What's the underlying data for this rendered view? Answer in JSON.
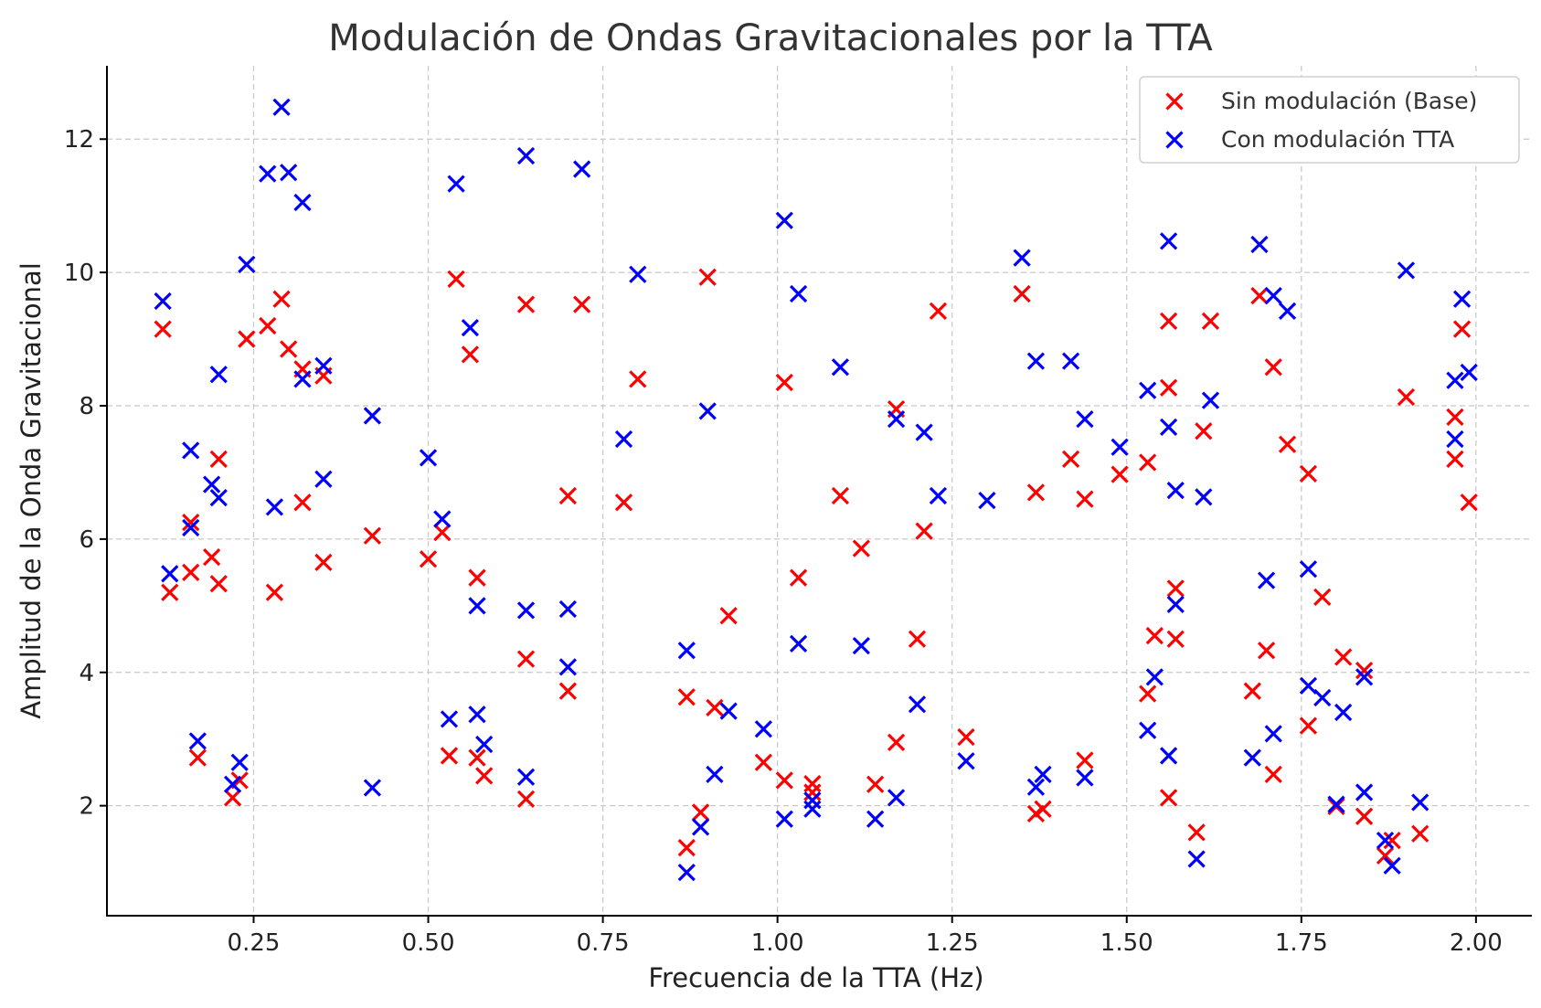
{
  "chart_data": {
    "type": "scatter",
    "title": "Modulación de Ondas Gravitacionales por la TTA",
    "xlabel": "Frecuencia de la TTA (Hz)",
    "ylabel": "Amplitud de la Onda Gravitacional",
    "xlim": [
      0.04,
      2.08
    ],
    "ylim": [
      0.35,
      13.1
    ],
    "xticks": [
      0.25,
      0.5,
      0.75,
      1.0,
      1.25,
      1.5,
      1.75,
      2.0
    ],
    "xtick_labels": [
      "0.25",
      "0.50",
      "0.75",
      "1.00",
      "1.25",
      "1.50",
      "1.75",
      "2.00"
    ],
    "yticks": [
      2,
      4,
      6,
      8,
      10,
      12
    ],
    "ytick_labels": [
      "2",
      "4",
      "6",
      "8",
      "10",
      "12"
    ],
    "grid": true,
    "legend_position": "top-right",
    "marker": "x",
    "series": [
      {
        "name": "Sin modulación (Base)",
        "color": "#ff0000",
        "points": [
          [
            0.12,
            9.15
          ],
          [
            0.13,
            5.2
          ],
          [
            0.16,
            5.5
          ],
          [
            0.16,
            6.25
          ],
          [
            0.17,
            2.72
          ],
          [
            0.19,
            5.73
          ],
          [
            0.2,
            5.33
          ],
          [
            0.2,
            7.2
          ],
          [
            0.22,
            2.12
          ],
          [
            0.23,
            2.38
          ],
          [
            0.24,
            9.0
          ],
          [
            0.27,
            9.2
          ],
          [
            0.28,
            5.2
          ],
          [
            0.29,
            9.6
          ],
          [
            0.3,
            8.85
          ],
          [
            0.32,
            8.55
          ],
          [
            0.32,
            6.55
          ],
          [
            0.35,
            5.65
          ],
          [
            0.35,
            8.45
          ],
          [
            0.42,
            6.05
          ],
          [
            0.5,
            5.7
          ],
          [
            0.52,
            6.1
          ],
          [
            0.53,
            2.75
          ],
          [
            0.54,
            9.9
          ],
          [
            0.56,
            8.77
          ],
          [
            0.57,
            2.72
          ],
          [
            0.57,
            5.42
          ],
          [
            0.58,
            2.45
          ],
          [
            0.64,
            9.52
          ],
          [
            0.64,
            2.1
          ],
          [
            0.64,
            4.2
          ],
          [
            0.7,
            6.65
          ],
          [
            0.7,
            3.72
          ],
          [
            0.72,
            9.52
          ],
          [
            0.78,
            6.55
          ],
          [
            0.8,
            8.4
          ],
          [
            0.87,
            3.63
          ],
          [
            0.87,
            1.37
          ],
          [
            0.89,
            1.9
          ],
          [
            0.9,
            9.93
          ],
          [
            0.91,
            3.47
          ],
          [
            0.93,
            4.85
          ],
          [
            0.98,
            2.65
          ],
          [
            1.01,
            8.35
          ],
          [
            1.01,
            2.38
          ],
          [
            1.03,
            5.42
          ],
          [
            1.05,
            2.33
          ],
          [
            1.05,
            2.2
          ],
          [
            1.09,
            6.65
          ],
          [
            1.12,
            5.86
          ],
          [
            1.14,
            2.32
          ],
          [
            1.17,
            7.95
          ],
          [
            1.17,
            2.95
          ],
          [
            1.2,
            4.5
          ],
          [
            1.21,
            6.12
          ],
          [
            1.23,
            9.42
          ],
          [
            1.27,
            3.03
          ],
          [
            1.35,
            9.68
          ],
          [
            1.37,
            6.7
          ],
          [
            1.37,
            1.88
          ],
          [
            1.38,
            1.95
          ],
          [
            1.42,
            7.2
          ],
          [
            1.44,
            2.68
          ],
          [
            1.44,
            6.6
          ],
          [
            1.49,
            6.97
          ],
          [
            1.53,
            7.15
          ],
          [
            1.53,
            3.68
          ],
          [
            1.54,
            4.55
          ],
          [
            1.56,
            9.27
          ],
          [
            1.56,
            8.27
          ],
          [
            1.56,
            2.12
          ],
          [
            1.57,
            5.26
          ],
          [
            1.57,
            4.5
          ],
          [
            1.6,
            1.6
          ],
          [
            1.61,
            7.62
          ],
          [
            1.62,
            9.27
          ],
          [
            1.68,
            3.72
          ],
          [
            1.69,
            9.65
          ],
          [
            1.7,
            4.33
          ],
          [
            1.71,
            2.47
          ],
          [
            1.71,
            8.58
          ],
          [
            1.73,
            7.42
          ],
          [
            1.76,
            3.2
          ],
          [
            1.76,
            6.98
          ],
          [
            1.78,
            5.13
          ],
          [
            1.8,
            1.99
          ],
          [
            1.81,
            4.23
          ],
          [
            1.84,
            1.84
          ],
          [
            1.84,
            4.03
          ],
          [
            1.87,
            1.25
          ],
          [
            1.88,
            1.48
          ],
          [
            1.9,
            8.13
          ],
          [
            1.92,
            1.58
          ],
          [
            1.97,
            7.2
          ],
          [
            1.97,
            7.83
          ],
          [
            1.98,
            9.15
          ],
          [
            1.99,
            6.55
          ]
        ]
      },
      {
        "name": "Con modulación TTA",
        "color": "#0000ff",
        "points": [
          [
            0.12,
            9.57
          ],
          [
            0.13,
            5.48
          ],
          [
            0.16,
            6.17
          ],
          [
            0.16,
            7.33
          ],
          [
            0.17,
            2.97
          ],
          [
            0.19,
            6.82
          ],
          [
            0.2,
            6.62
          ],
          [
            0.2,
            8.47
          ],
          [
            0.22,
            2.32
          ],
          [
            0.23,
            2.65
          ],
          [
            0.24,
            10.12
          ],
          [
            0.27,
            11.48
          ],
          [
            0.28,
            6.48
          ],
          [
            0.29,
            12.48
          ],
          [
            0.3,
            11.5
          ],
          [
            0.32,
            11.05
          ],
          [
            0.32,
            8.4
          ],
          [
            0.35,
            6.9
          ],
          [
            0.35,
            8.6
          ],
          [
            0.42,
            7.85
          ],
          [
            0.42,
            2.27
          ],
          [
            0.5,
            7.22
          ],
          [
            0.52,
            6.3
          ],
          [
            0.53,
            3.3
          ],
          [
            0.54,
            11.33
          ],
          [
            0.56,
            9.17
          ],
          [
            0.57,
            3.37
          ],
          [
            0.57,
            5.0
          ],
          [
            0.58,
            2.92
          ],
          [
            0.64,
            11.75
          ],
          [
            0.64,
            2.43
          ],
          [
            0.64,
            4.93
          ],
          [
            0.7,
            4.95
          ],
          [
            0.7,
            4.08
          ],
          [
            0.72,
            11.55
          ],
          [
            0.78,
            7.5
          ],
          [
            0.8,
            9.97
          ],
          [
            0.87,
            4.33
          ],
          [
            0.87,
            1.0
          ],
          [
            0.89,
            1.68
          ],
          [
            0.9,
            7.92
          ],
          [
            0.91,
            2.47
          ],
          [
            0.93,
            3.42
          ],
          [
            0.98,
            3.15
          ],
          [
            1.01,
            10.78
          ],
          [
            1.01,
            1.8
          ],
          [
            1.03,
            9.68
          ],
          [
            1.03,
            4.43
          ],
          [
            1.05,
            2.08
          ],
          [
            1.05,
            1.95
          ],
          [
            1.09,
            8.58
          ],
          [
            1.12,
            4.4
          ],
          [
            1.14,
            1.8
          ],
          [
            1.17,
            7.8
          ],
          [
            1.17,
            2.12
          ],
          [
            1.2,
            3.52
          ],
          [
            1.21,
            7.6
          ],
          [
            1.23,
            6.65
          ],
          [
            1.27,
            2.67
          ],
          [
            1.3,
            6.58
          ],
          [
            1.35,
            10.22
          ],
          [
            1.37,
            8.67
          ],
          [
            1.37,
            2.28
          ],
          [
            1.38,
            2.47
          ],
          [
            1.42,
            8.67
          ],
          [
            1.44,
            2.42
          ],
          [
            1.44,
            7.8
          ],
          [
            1.49,
            7.38
          ],
          [
            1.53,
            8.23
          ],
          [
            1.53,
            3.13
          ],
          [
            1.54,
            3.93
          ],
          [
            1.56,
            10.47
          ],
          [
            1.56,
            7.68
          ],
          [
            1.56,
            2.75
          ],
          [
            1.57,
            6.73
          ],
          [
            1.57,
            5.02
          ],
          [
            1.6,
            1.2
          ],
          [
            1.61,
            6.63
          ],
          [
            1.62,
            8.08
          ],
          [
            1.68,
            2.72
          ],
          [
            1.69,
            10.42
          ],
          [
            1.7,
            5.38
          ],
          [
            1.71,
            3.08
          ],
          [
            1.71,
            9.65
          ],
          [
            1.73,
            9.42
          ],
          [
            1.76,
            3.8
          ],
          [
            1.76,
            5.55
          ],
          [
            1.78,
            3.62
          ],
          [
            1.8,
            2.02
          ],
          [
            1.81,
            3.4
          ],
          [
            1.84,
            2.2
          ],
          [
            1.84,
            3.93
          ],
          [
            1.87,
            1.48
          ],
          [
            1.88,
            1.1
          ],
          [
            1.9,
            10.03
          ],
          [
            1.92,
            2.05
          ],
          [
            1.97,
            7.5
          ],
          [
            1.97,
            8.38
          ],
          [
            1.98,
            9.6
          ],
          [
            1.99,
            8.5
          ]
        ]
      }
    ]
  }
}
